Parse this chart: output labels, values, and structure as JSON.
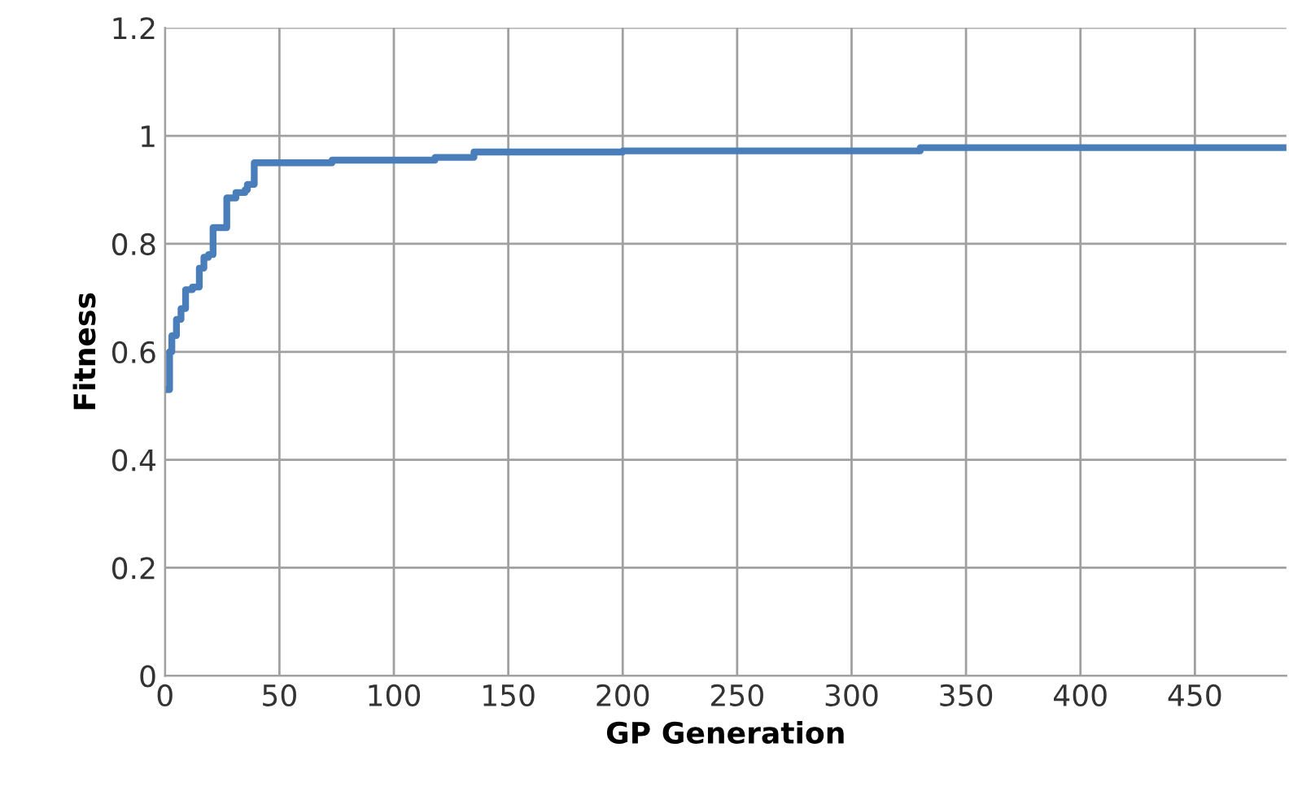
{
  "chart_data": {
    "type": "step",
    "xlabel": "GP Generation",
    "ylabel": "Fitness",
    "x": [
      1,
      2,
      3,
      5,
      7,
      9,
      12,
      15,
      17,
      19,
      21,
      25,
      27,
      31,
      35,
      36,
      39,
      73,
      118,
      135,
      200,
      330,
      490
    ],
    "series": [
      {
        "color": "#4a7ebb",
        "values": [
          0.53,
          0.6,
          0.63,
          0.66,
          0.68,
          0.715,
          0.72,
          0.755,
          0.775,
          0.78,
          0.83,
          0.83,
          0.885,
          0.895,
          0.9,
          0.91,
          0.95,
          0.955,
          0.96,
          0.97,
          0.972,
          0.978,
          0.978
        ]
      }
    ],
    "xlim": [
      0,
      490
    ],
    "xticks": [
      0,
      50,
      100,
      150,
      200,
      250,
      300,
      350,
      400,
      450
    ],
    "ylim": [
      0,
      1.2
    ],
    "yticks": [
      {
        "value": 0,
        "label": "0"
      },
      {
        "value": 0.2,
        "label": "0.2"
      },
      {
        "value": 0.4,
        "label": "0.4"
      },
      {
        "value": 0.6,
        "label": "0.6"
      },
      {
        "value": 0.8,
        "label": "0.8"
      },
      {
        "value": 1,
        "label": "1"
      },
      {
        "value": 1.2,
        "label": "1.2"
      }
    ],
    "grid": true,
    "legend": false
  }
}
